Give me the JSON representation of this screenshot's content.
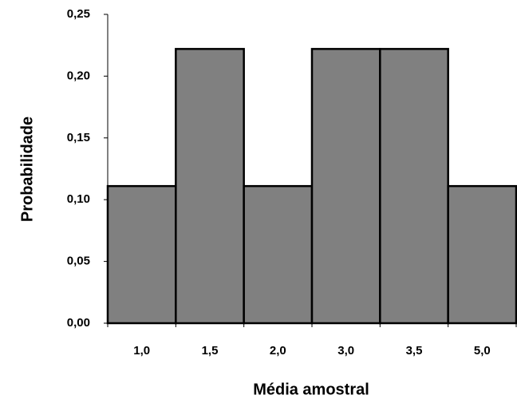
{
  "chart_data": {
    "type": "bar",
    "x_label": "Média amostral",
    "y_label": "Probabilidade",
    "categories": [
      "1,0",
      "1,5",
      "2,0",
      "3,0",
      "3,5",
      "5,0"
    ],
    "values": [
      0.111,
      0.222,
      0.111,
      0.222,
      0.222,
      0.111
    ],
    "color": "#808080",
    "ylim": [
      0,
      0.25
    ],
    "yticks": [
      {
        "value": 0,
        "label": "0,00"
      },
      {
        "value": 0.05,
        "label": "0,05"
      },
      {
        "value": 0.1,
        "label": "0,10"
      },
      {
        "value": 0.15,
        "label": "0,15"
      },
      {
        "value": 0.2,
        "label": "0,20"
      },
      {
        "value": 0.25,
        "label": "0,25"
      }
    ],
    "grid": false
  }
}
